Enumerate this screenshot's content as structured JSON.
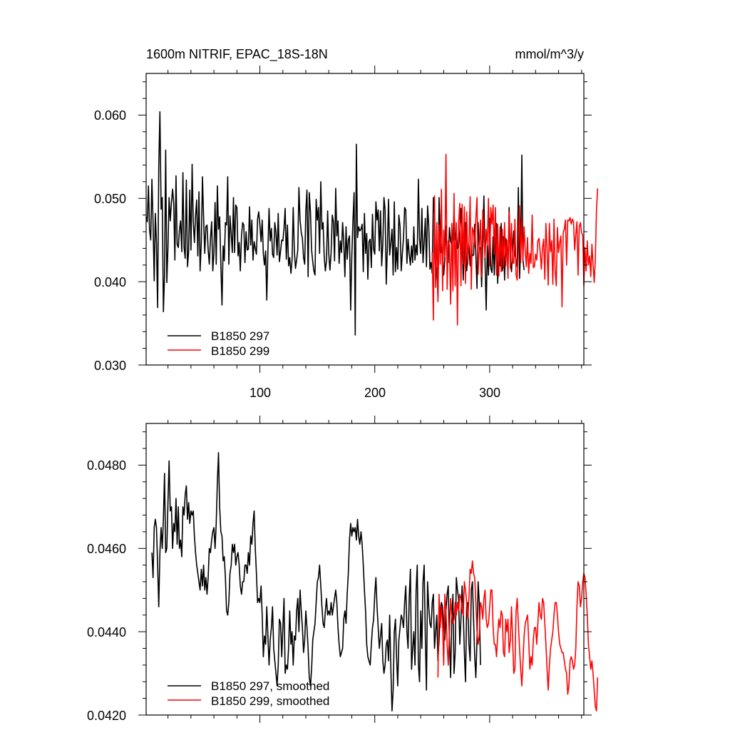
{
  "chart_data": [
    {
      "type": "line",
      "title": "1600m NITRIF, EPAC_18S-18N",
      "units": "mmol/m^3/y",
      "xlim": [
        1,
        382
      ],
      "ylim": [
        0.03,
        0.065
      ],
      "xticks": [
        100,
        200,
        300
      ],
      "xtick_labels": [
        "100",
        "200",
        "300"
      ],
      "yticks": [
        0.03,
        0.04,
        0.05,
        0.06
      ],
      "ytick_labels": [
        "0.030",
        "0.040",
        "0.050",
        "0.060"
      ],
      "grid": false,
      "legend": "bottom-left",
      "series": [
        {
          "name": "B1850 297",
          "color": "#000000",
          "x_start": 1,
          "values": [
            0.0478,
            0.0472,
            0.0515,
            0.0462,
            0.045,
            0.0523,
            0.0471,
            0.0401,
            0.0482,
            0.0446,
            0.0369,
            0.0537,
            0.0604,
            0.0487,
            0.0501,
            0.0364,
            0.0408,
            0.0558,
            0.0399,
            0.0441,
            0.0501,
            0.0473,
            0.0495,
            0.0511,
            0.0494,
            0.0426,
            0.0527,
            0.0445,
            0.0441,
            0.0462,
            0.0473,
            0.0436,
            0.0531,
            0.0441,
            0.0428,
            0.0522,
            0.0418,
            0.0436,
            0.051,
            0.0438,
            0.0541,
            0.0472,
            0.0447,
            0.0479,
            0.0498,
            0.0431,
            0.0508,
            0.0413,
            0.0448,
            0.0526,
            0.0477,
            0.0434,
            0.0466,
            0.0468,
            0.0438,
            0.0421,
            0.0451,
            0.0472,
            0.0413,
            0.0435,
            0.0495,
            0.0421,
            0.0515,
            0.0463,
            0.0478,
            0.0421,
            0.0372,
            0.0443,
            0.0425,
            0.0471,
            0.0468,
            0.0526,
            0.0421,
            0.0479,
            0.0457,
            0.0435,
            0.0501,
            0.0435,
            0.0492,
            0.0489,
            0.0431,
            0.0447,
            0.0413,
            0.0456,
            0.0471,
            0.0468,
            0.0423,
            0.046,
            0.0438,
            0.0439,
            0.049,
            0.0444,
            0.0474,
            0.0426,
            0.0448,
            0.044,
            0.0433,
            0.0475,
            0.0484,
            0.0469,
            0.0448,
            0.0474,
            0.0433,
            0.042,
            0.0437,
            0.0378,
            0.0437,
            0.0488,
            0.0449,
            0.0464,
            0.0433,
            0.0429,
            0.0471,
            0.0459,
            0.0432,
            0.0482,
            0.0424,
            0.0437,
            0.045,
            0.0449,
            0.0464,
            0.0488,
            0.0427,
            0.0468,
            0.0419,
            0.0429,
            0.041,
            0.0426,
            0.0489,
            0.0437,
            0.0416,
            0.0426,
            0.0438,
            0.0513,
            0.0474,
            0.0459,
            0.0452,
            0.0429,
            0.0421,
            0.0485,
            0.051,
            0.0406,
            0.0507,
            0.0484,
            0.0438,
            0.0424,
            0.0413,
            0.0408,
            0.0499,
            0.0474,
            0.0489,
            0.0434,
            0.052,
            0.0463,
            0.0471,
            0.043,
            0.0413,
            0.0426,
            0.0485,
            0.0433,
            0.0414,
            0.0436,
            0.048,
            0.0472,
            0.0425,
            0.0512,
            0.0455,
            0.0473,
            0.0422,
            0.0449,
            0.0435,
            0.0471,
            0.0448,
            0.0406,
            0.0466,
            0.0427,
            0.045,
            0.0455,
            0.0366,
            0.0431,
            0.0473,
            0.0507,
            0.0336,
            0.0565,
            0.0453,
            0.0466,
            0.0461,
            0.0463,
            0.0469,
            0.0412,
            0.0482,
            0.0434,
            0.0458,
            0.0403,
            0.0448,
            0.0451,
            0.0417,
            0.0481,
            0.0439,
            0.0433,
            0.0496,
            0.0474,
            0.0486,
            0.0437,
            0.0485,
            0.0419,
            0.0445,
            0.0501,
            0.0486,
            0.0397,
            0.0441,
            0.0499,
            0.0432,
            0.0447,
            0.0463,
            0.0408,
            0.0496,
            0.0412,
            0.0441,
            0.0415,
            0.048,
            0.0466,
            0.0413,
            0.0434,
            0.0452,
            0.0489,
            0.0486,
            0.0422,
            0.0451,
            0.0433,
            0.042,
            0.0443,
            0.0423,
            0.0466,
            0.0426,
            0.0444,
            0.0432,
            0.0523,
            0.0452,
            0.0434,
            0.0488,
            0.0423,
            0.0448,
            0.0476,
            0.0418,
            0.0491,
            0.0468,
            0.0415,
            0.0423,
            0.041,
            0.0501,
            0.048,
            0.0402,
            0.0417,
            0.0381,
            0.0501,
            0.0452,
            0.0435,
            0.0434,
            0.0408,
            0.0426,
            0.0467,
            0.0434,
            0.0423,
            0.0465,
            0.0448,
            0.0444,
            0.0455,
            0.0484,
            0.045,
            0.0461,
            0.044,
            0.0441,
            0.046,
            0.0488,
            0.0455,
            0.0402,
            0.044,
            0.0471,
            0.0413,
            0.0429,
            0.0445,
            0.0419,
            0.0437,
            0.0431,
            0.0432,
            0.0469,
            0.0433,
            0.0392,
            0.0471,
            0.044,
            0.0441,
            0.0394,
            0.0444,
            0.0503,
            0.0423,
            0.0366,
            0.0444,
            0.0408,
            0.0476,
            0.0416,
            0.0411,
            0.0454,
            0.0408,
            0.045,
            0.047,
            0.0398,
            0.0434,
            0.0419,
            0.047,
            0.0413,
            0.0454,
            0.0402,
            0.0452,
            0.0447,
            0.0417,
            0.0489,
            0.0425,
            0.0412,
            0.0439,
            0.0461,
            0.0432,
            0.0426,
            0.0418,
            0.0513,
            0.0404,
            0.0442,
            0.0552,
            0.0426,
            0.0414
          ]
        },
        {
          "name": "B1850 299",
          "color": "#ff0000",
          "x_start": 250,
          "values": [
            0.0435,
            0.0354,
            0.0503,
            0.0393,
            0.0471,
            0.0376,
            0.0468,
            0.0421,
            0.0511,
            0.0389,
            0.0462,
            0.043,
            0.0553,
            0.0391,
            0.0449,
            0.0444,
            0.0373,
            0.047,
            0.0389,
            0.0506,
            0.0395,
            0.0471,
            0.0348,
            0.047,
            0.0494,
            0.0395,
            0.0493,
            0.0421,
            0.049,
            0.0398,
            0.0484,
            0.0421,
            0.0448,
            0.0502,
            0.0391,
            0.0465,
            0.046,
            0.0442,
            0.0476,
            0.0501,
            0.0409,
            0.0441,
            0.0474,
            0.0406,
            0.0486,
            0.0458,
            0.0429,
            0.0463,
            0.0444,
            0.05,
            0.0419,
            0.0489,
            0.0469,
            0.0492,
            0.0433,
            0.0489,
            0.0408,
            0.0469,
            0.0407,
            0.0466,
            0.0412,
            0.0463,
            0.0416,
            0.0471,
            0.0419,
            0.045,
            0.0404,
            0.0484,
            0.0416,
            0.047,
            0.0423,
            0.0422,
            0.0475,
            0.0408,
            0.0402,
            0.0454,
            0.0491,
            0.0423,
            0.0474,
            0.0426,
            0.0466,
            0.0437,
            0.0418,
            0.0453,
            0.041,
            0.0434,
            0.0422,
            0.048,
            0.0417,
            0.0418,
            0.0433,
            0.0426,
            0.0449,
            0.0452,
            0.0435,
            0.0415,
            0.0441,
            0.0451,
            0.0403,
            0.047,
            0.044,
            0.0396,
            0.047,
            0.0436,
            0.0449,
            0.0397,
            0.0475,
            0.0413,
            0.0395,
            0.0465,
            0.0435,
            0.0447,
            0.0455,
            0.037,
            0.0459,
            0.0463,
            0.0474,
            0.042,
            0.0474,
            0.0473,
            0.0477,
            0.0469,
            0.0475,
            0.0472,
            0.0438,
            0.0457,
            0.0472,
            0.0408,
            0.0466,
            0.0471,
            0.0459,
            0.0456,
            0.0395,
            0.0441,
            0.0413,
            0.0449,
            0.042,
            0.0431,
            0.0406,
            0.0445,
            0.0421,
            0.0399,
            0.0427,
            0.0486,
            0.0512
          ]
        }
      ]
    },
    {
      "type": "line",
      "xlim": [
        1,
        382
      ],
      "ylim": [
        0.042,
        0.049
      ],
      "xticks": [
        100,
        200,
        300
      ],
      "yticks": [
        0.042,
        0.044,
        0.046,
        0.048
      ],
      "ytick_labels": [
        "0.0420",
        "0.0440",
        "0.0460",
        "0.0480"
      ],
      "grid": false,
      "legend": "bottom-left",
      "series": [
        {
          "name": "B1850 297, smoothed",
          "color": "#000000",
          "x_start": 6,
          "values": [
            0.0459,
            0.0453,
            0.0465,
            0.0467,
            0.0465,
            0.0456,
            0.0446,
            0.0459,
            0.0465,
            0.046,
            0.0467,
            0.0478,
            0.0459,
            0.046,
            0.0471,
            0.0481,
            0.0469,
            0.047,
            0.046,
            0.0466,
            0.0464,
            0.0472,
            0.0461,
            0.047,
            0.046,
            0.0462,
            0.0458,
            0.047,
            0.0468,
            0.0473,
            0.0475,
            0.0467,
            0.0471,
            0.0466,
            0.0469,
            0.0468,
            0.0469,
            0.0463,
            0.0459,
            0.0456,
            0.0454,
            0.0452,
            0.045,
            0.0455,
            0.0451,
            0.0456,
            0.045,
            0.0453,
            0.0449,
            0.0453,
            0.046,
            0.0459,
            0.0462,
            0.0464,
            0.0465,
            0.046,
            0.0466,
            0.0476,
            0.0483,
            0.047,
            0.0464,
            0.0463,
            0.0457,
            0.0458,
            0.0453,
            0.0445,
            0.0444,
            0.0447,
            0.0454,
            0.0456,
            0.0461,
            0.0459,
            0.0461,
            0.0456,
            0.0458,
            0.0459,
            0.0456,
            0.0451,
            0.0449,
            0.0452,
            0.0452,
            0.0456,
            0.0456,
            0.0454,
            0.0459,
            0.0456,
            0.0463,
            0.0461,
            0.0466,
            0.0469,
            0.046,
            0.0454,
            0.0447,
            0.0448,
            0.0447,
            0.0451,
            0.0444,
            0.0434,
            0.0439,
            0.0437,
            0.0446,
            0.0439,
            0.0432,
            0.0438,
            0.0441,
            0.0446,
            0.0436,
            0.0433,
            0.043,
            0.0427,
            0.0432,
            0.0443,
            0.0442,
            0.0434,
            0.0441,
            0.0448,
            0.043,
            0.0432,
            0.0431,
            0.0436,
            0.0445,
            0.0437,
            0.044,
            0.0432,
            0.0439,
            0.0438,
            0.0445,
            0.0448,
            0.044,
            0.045,
            0.0445,
            0.0441,
            0.0435,
            0.0438,
            0.0445,
            0.0441,
            0.0436,
            0.0429,
            0.0427,
            0.0431,
            0.0438,
            0.044,
            0.0442,
            0.0447,
            0.0452,
            0.0453,
            0.0456,
            0.0451,
            0.0446,
            0.0442,
            0.0441,
            0.0445,
            0.0448,
            0.0444,
            0.0445,
            0.0444,
            0.0447,
            0.0444,
            0.0446,
            0.0448,
            0.045,
            0.0447,
            0.0441,
            0.0437,
            0.0434,
            0.0435,
            0.0436,
            0.0443,
            0.0445,
            0.0442,
            0.0449,
            0.0454,
            0.0462,
            0.0466,
            0.0463,
            0.0465,
            0.0464,
            0.0465,
            0.0462,
            0.0467,
            0.0463,
            0.0461,
            0.0464,
            0.0461,
            0.0456,
            0.045,
            0.0445,
            0.0437,
            0.0434,
            0.0433,
            0.0432,
            0.0437,
            0.0441,
            0.0443,
            0.0449,
            0.0453,
            0.0446,
            0.0441,
            0.0436,
            0.0439,
            0.0442,
            0.0433,
            0.043,
            0.0432,
            0.0437,
            0.0438,
            0.0433,
            0.0444,
            0.0431,
            0.0421,
            0.0426,
            0.044,
            0.0443,
            0.0434,
            0.0427,
            0.0438,
            0.0441,
            0.0444,
            0.0443,
            0.0441,
            0.0447,
            0.0451,
            0.044,
            0.0436,
            0.0448,
            0.0455,
            0.0431,
            0.0436,
            0.044,
            0.0432,
            0.045,
            0.0456,
            0.0432,
            0.0428,
            0.0445,
            0.0436,
            0.0452,
            0.0456,
            0.0439,
            0.0426,
            0.0452,
            0.0446,
            0.0442,
            0.0441,
            0.0447,
            0.0449,
            0.0436,
            0.044,
            0.0444,
            0.0433,
            0.0438,
            0.0445,
            0.0447,
            0.0446,
            0.0441,
            0.0438,
            0.0445,
            0.0449,
            0.0451,
            0.0438,
            0.0429,
            0.0443,
            0.0449,
            0.043,
            0.0435,
            0.0453,
            0.045,
            0.0448,
            0.0437,
            0.0443,
            0.0451,
            0.0445,
            0.0435,
            0.0428,
            0.0446,
            0.0447,
            0.0437,
            0.0433,
            0.045,
            0.0452,
            0.0443,
            0.0434,
            0.0429,
            0.0438,
            0.0452,
            0.0447,
            0.0432
          ]
        },
        {
          "name": "B1850 299, smoothed",
          "color": "#ff0000",
          "x_start": 255,
          "values": [
            0.0429,
            0.0449,
            0.0441,
            0.0446,
            0.0442,
            0.0432,
            0.0449,
            0.0445,
            0.0437,
            0.0432,
            0.044,
            0.0448,
            0.0444,
            0.0442,
            0.0443,
            0.0447,
            0.0444,
            0.0447,
            0.0445,
            0.0449,
            0.0448,
            0.0445,
            0.0444,
            0.0452,
            0.045,
            0.0447,
            0.0443,
            0.0448,
            0.0455,
            0.0454,
            0.0457,
            0.0454,
            0.0453,
            0.0447,
            0.044,
            0.0437,
            0.0439,
            0.0447,
            0.0446,
            0.0443,
            0.0448,
            0.045,
            0.0443,
            0.0441,
            0.0442,
            0.0446,
            0.045,
            0.045,
            0.0441,
            0.0437,
            0.0437,
            0.0434,
            0.0439,
            0.0443,
            0.0441,
            0.0445,
            0.0444,
            0.0435,
            0.0434,
            0.0443,
            0.044,
            0.0443,
            0.0435,
            0.0438,
            0.0446,
            0.0438,
            0.043,
            0.0431,
            0.0445,
            0.0448,
            0.0442,
            0.0436,
            0.0431,
            0.0427,
            0.0433,
            0.0439,
            0.0442,
            0.0443,
            0.0444,
            0.0438,
            0.0431,
            0.0434,
            0.0432,
            0.0438,
            0.0441,
            0.0441,
            0.0437,
            0.0442,
            0.0447,
            0.0444,
            0.0443,
            0.0448,
            0.0447,
            0.0442,
            0.0437,
            0.0431,
            0.0426,
            0.0432,
            0.0436,
            0.0438,
            0.044,
            0.0444,
            0.0447,
            0.0447,
            0.0444,
            0.044,
            0.0437,
            0.0436,
            0.0435,
            0.0435,
            0.0433,
            0.0431,
            0.043,
            0.0425,
            0.0427,
            0.0433,
            0.0434,
            0.0433,
            0.0431,
            0.0432,
            0.0436,
            0.0446,
            0.0452,
            0.0451,
            0.0446,
            0.0448,
            0.0452,
            0.0454,
            0.0453,
            0.0449,
            0.0444,
            0.0437,
            0.0434,
            0.0431,
            0.0433,
            0.043,
            0.0426,
            0.0422,
            0.0421,
            0.0429
          ]
        }
      ]
    }
  ]
}
